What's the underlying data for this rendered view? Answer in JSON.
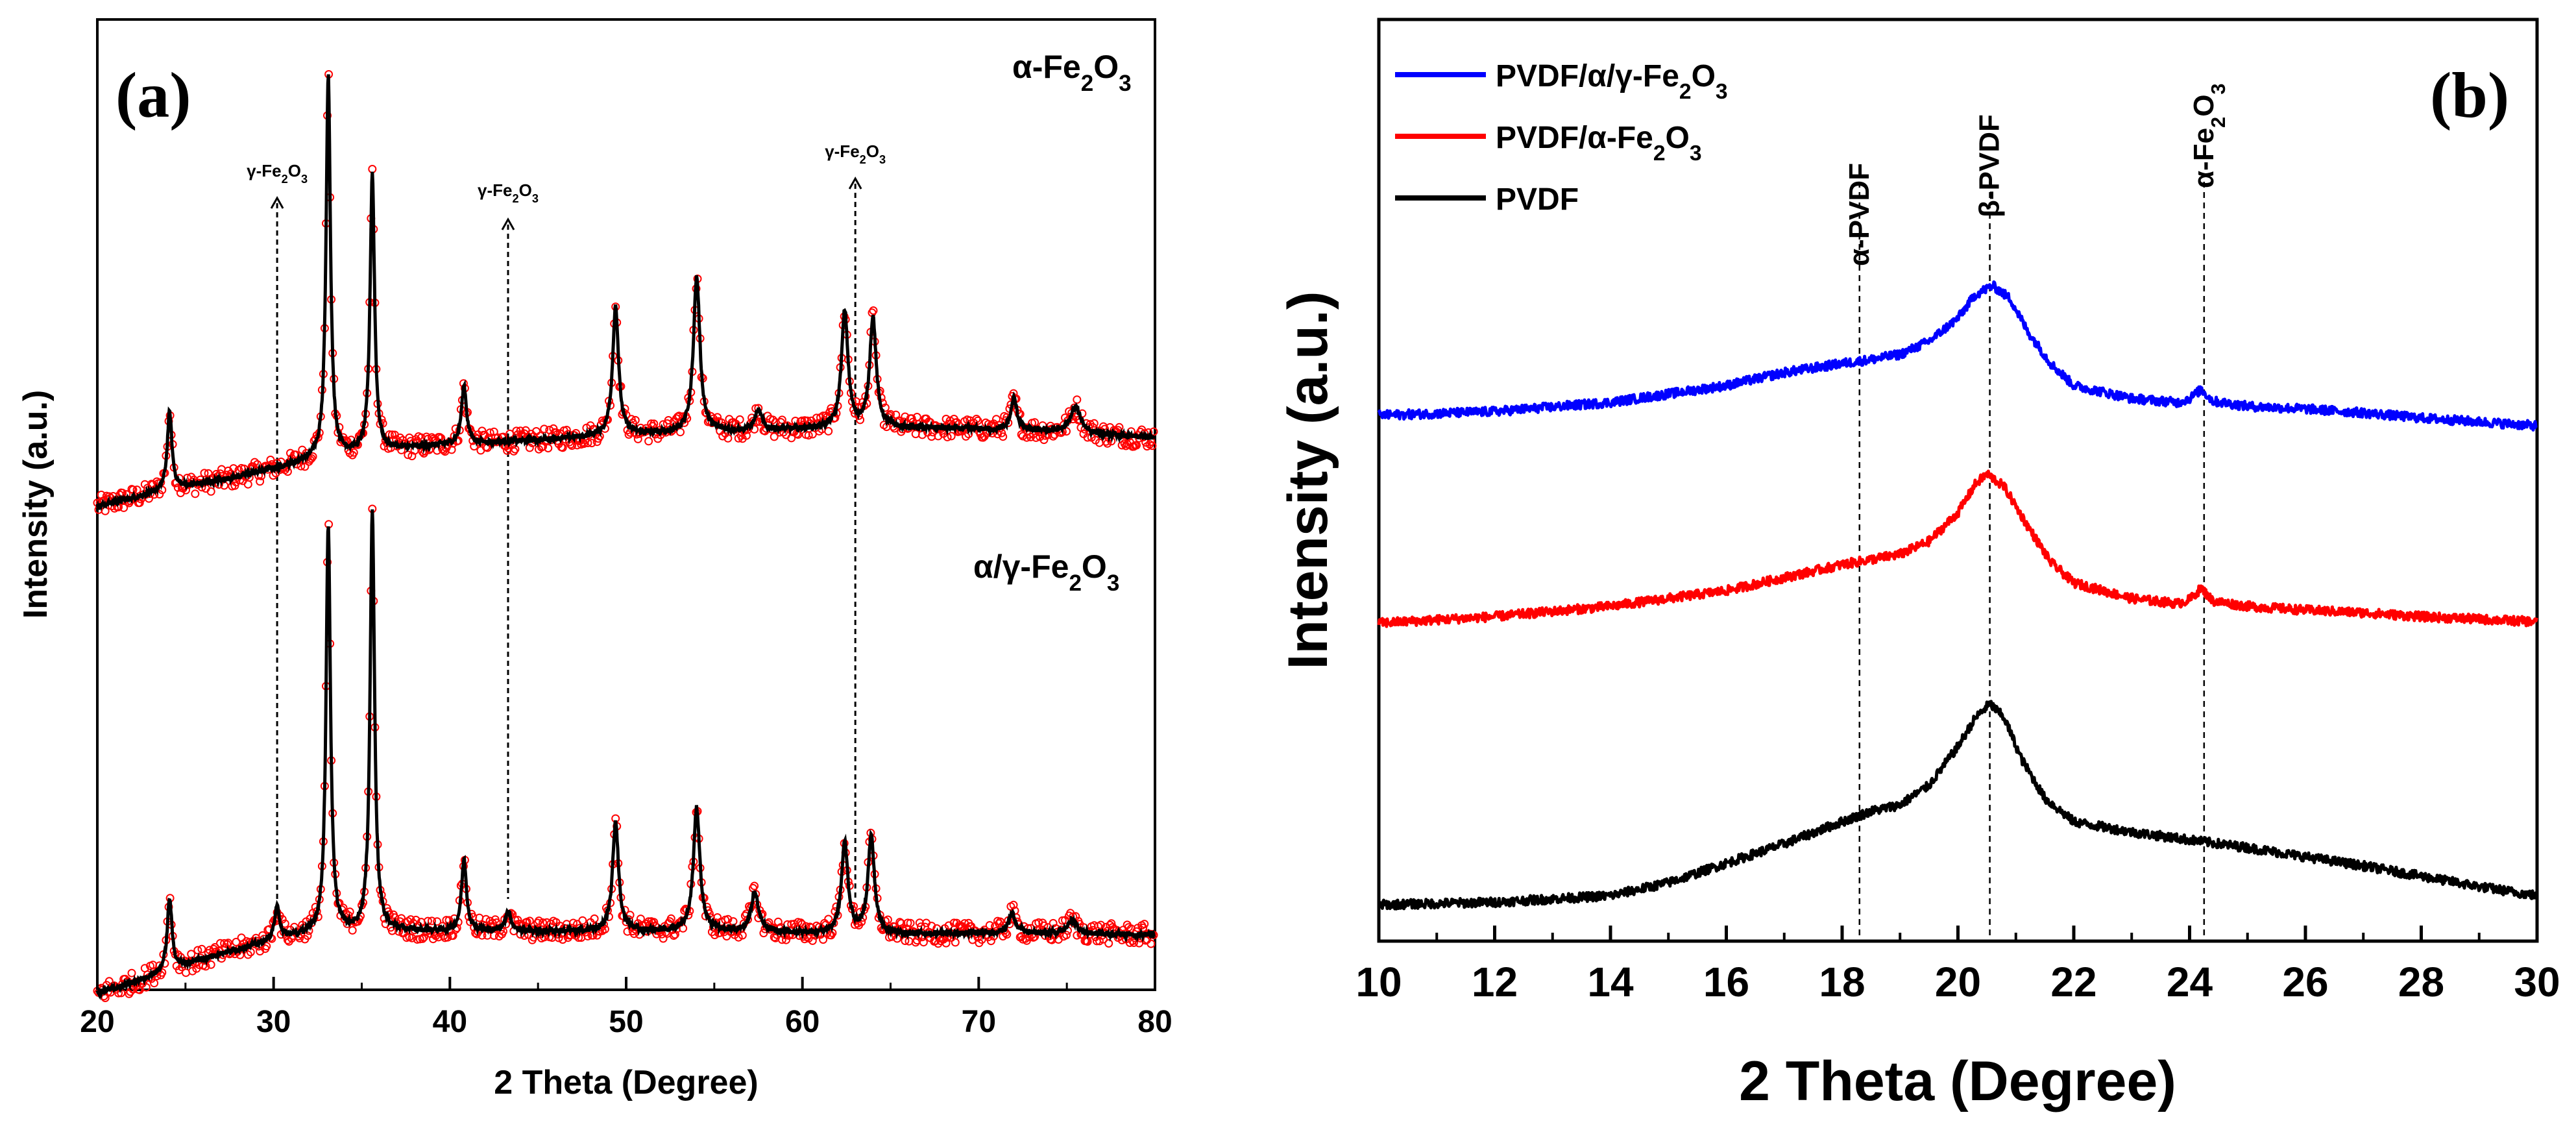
{
  "chart_data": [
    {
      "panel": "(a)",
      "type": "scatter",
      "xlabel": "2 Theta (Degree)",
      "ylabel": "Intensity (a.u.)",
      "xlim": [
        20,
        80
      ],
      "xticks": [
        20,
        30,
        40,
        50,
        60,
        70,
        80
      ],
      "y_ticks_shown": false,
      "marker_color": "#ff0000",
      "fit_color": "#000000",
      "series": [
        {
          "name": "α-Fe2O3",
          "label": {
            "prefix": "α-Fe",
            "sub1": "2",
            "mid": "O",
            "sub2": "3"
          },
          "baseline": [
            [
              20,
              1.2
            ],
            [
              24,
              1.45
            ],
            [
              28,
              1.65
            ],
            [
              32,
              1.9
            ],
            [
              36,
              2.05
            ],
            [
              40,
              2.15
            ],
            [
              44,
              2.2
            ],
            [
              50,
              2.3
            ],
            [
              56,
              2.35
            ],
            [
              62,
              2.4
            ],
            [
              68,
              2.4
            ],
            [
              74,
              2.35
            ],
            [
              80,
              2.25
            ]
          ],
          "peaks": [
            {
              "x": 24.1,
              "h": 1.2,
              "w": 0.16
            },
            {
              "x": 33.1,
              "h": 5.9,
              "w": 0.15
            },
            {
              "x": 35.6,
              "h": 4.3,
              "w": 0.15
            },
            {
              "x": 40.8,
              "h": 0.9,
              "w": 0.17
            },
            {
              "x": 49.4,
              "h": 2.0,
              "w": 0.2
            },
            {
              "x": 54.0,
              "h": 2.4,
              "w": 0.22
            },
            {
              "x": 57.5,
              "h": 0.3,
              "w": 0.25
            },
            {
              "x": 62.4,
              "h": 1.8,
              "w": 0.22
            },
            {
              "x": 64.0,
              "h": 1.7,
              "w": 0.22
            },
            {
              "x": 72.0,
              "h": 0.5,
              "w": 0.2
            },
            {
              "x": 75.5,
              "h": 0.4,
              "w": 0.35
            }
          ]
        },
        {
          "name": "α/γ-Fe2O3",
          "label": {
            "prefix": "α/γ-Fe",
            "sub1": "2",
            "mid": "O",
            "sub2": "3"
          },
          "baseline": [
            [
              20,
              0.0
            ],
            [
              22,
              0.15
            ],
            [
              24,
              0.35
            ],
            [
              27,
              0.6
            ],
            [
              30,
              0.8
            ],
            [
              32,
              0.9
            ],
            [
              36,
              0.95
            ],
            [
              40,
              0.95
            ],
            [
              45,
              0.95
            ],
            [
              50,
              0.95
            ],
            [
              55,
              0.95
            ],
            [
              60,
              0.92
            ],
            [
              65,
              0.9
            ],
            [
              70,
              0.92
            ],
            [
              75,
              0.92
            ],
            [
              80,
              0.9
            ]
          ],
          "peaks": [
            {
              "x": 24.1,
              "h": 1.1,
              "w": 0.16
            },
            {
              "x": 30.2,
              "h": 0.5,
              "w": 0.18
            },
            {
              "x": 33.1,
              "h": 6.3,
              "w": 0.15
            },
            {
              "x": 35.6,
              "h": 6.5,
              "w": 0.15
            },
            {
              "x": 40.8,
              "h": 1.1,
              "w": 0.17
            },
            {
              "x": 43.3,
              "h": 0.3,
              "w": 0.2
            },
            {
              "x": 49.4,
              "h": 1.7,
              "w": 0.2
            },
            {
              "x": 54.0,
              "h": 1.9,
              "w": 0.22
            },
            {
              "x": 57.3,
              "h": 0.6,
              "w": 0.25
            },
            {
              "x": 62.4,
              "h": 1.4,
              "w": 0.22
            },
            {
              "x": 63.9,
              "h": 1.5,
              "w": 0.22
            },
            {
              "x": 71.9,
              "h": 0.3,
              "w": 0.25
            },
            {
              "x": 75.3,
              "h": 0.2,
              "w": 0.3
            }
          ]
        }
      ],
      "annotations": [
        {
          "text": "γ-Fe2O3",
          "label": {
            "prefix": "γ-Fe",
            "sub1": "2",
            "mid": "O",
            "sub2": "3"
          },
          "x": 30.2
        },
        {
          "text": "γ-Fe2O3",
          "label": {
            "prefix": "γ-Fe",
            "sub1": "2",
            "mid": "O",
            "sub2": "3"
          },
          "x": 43.3
        },
        {
          "text": "γ-Fe2O3",
          "label": {
            "prefix": "γ-Fe",
            "sub1": "2",
            "mid": "O",
            "sub2": "3"
          },
          "x": 63.0
        }
      ]
    },
    {
      "panel": "(b)",
      "type": "line",
      "xlabel": "2 Theta (Degree)",
      "ylabel": "Intensity (a.u.)",
      "xlim": [
        10,
        30
      ],
      "xticks": [
        10,
        12,
        14,
        16,
        18,
        20,
        22,
        24,
        26,
        28,
        30
      ],
      "y_ticks_shown": false,
      "legend_position": "top-left",
      "series": [
        {
          "name": "PVDF/α/γ-Fe2O3",
          "label": {
            "prefix": "PVDF/α/γ-Fe",
            "sub1": "2",
            "mid": "O",
            "sub2": "3"
          },
          "color": "#0000ff",
          "curve": [
            [
              10,
              2.95
            ],
            [
              12,
              2.98
            ],
            [
              14,
              3.05
            ],
            [
              16,
              3.18
            ],
            [
              17,
              3.28
            ],
            [
              18,
              3.35
            ],
            [
              18.5,
              3.38
            ],
            [
              19,
              3.42
            ],
            [
              19.5,
              3.52
            ],
            [
              20,
              3.7
            ],
            [
              20.3,
              3.88
            ],
            [
              20.6,
              3.95
            ],
            [
              20.9,
              3.85
            ],
            [
              21.2,
              3.6
            ],
            [
              21.6,
              3.35
            ],
            [
              22,
              3.18
            ],
            [
              23,
              3.08
            ],
            [
              23.8,
              3.05
            ],
            [
              24,
              3.08
            ],
            [
              24.2,
              3.15
            ],
            [
              24.4,
              3.06
            ],
            [
              25,
              3.02
            ],
            [
              26,
              3.0
            ],
            [
              27,
              2.97
            ],
            [
              28,
              2.93
            ],
            [
              29,
              2.9
            ],
            [
              30,
              2.87
            ]
          ]
        },
        {
          "name": "PVDF/α-Fe2O3",
          "label": {
            "prefix": "PVDF/α-Fe",
            "sub1": "2",
            "mid": "O",
            "sub2": "3"
          },
          "color": "#ff0000",
          "curve": [
            [
              10,
              1.35
            ],
            [
              12,
              1.4
            ],
            [
              14,
              1.48
            ],
            [
              16,
              1.6
            ],
            [
              17,
              1.7
            ],
            [
              18,
              1.8
            ],
            [
              18.5,
              1.84
            ],
            [
              19,
              1.88
            ],
            [
              19.5,
              1.98
            ],
            [
              20,
              2.2
            ],
            [
              20.3,
              2.42
            ],
            [
              20.5,
              2.5
            ],
            [
              20.8,
              2.4
            ],
            [
              21.2,
              2.1
            ],
            [
              21.6,
              1.82
            ],
            [
              22,
              1.66
            ],
            [
              23,
              1.54
            ],
            [
              23.8,
              1.5
            ],
            [
              24,
              1.53
            ],
            [
              24.2,
              1.62
            ],
            [
              24.4,
              1.52
            ],
            [
              25,
              1.48
            ],
            [
              26,
              1.45
            ],
            [
              27,
              1.43
            ],
            [
              28,
              1.4
            ],
            [
              29,
              1.38
            ],
            [
              30,
              1.36
            ]
          ]
        },
        {
          "name": "PVDF",
          "label": {
            "prefix": "PVDF",
            "sub1": "",
            "mid": "",
            "sub2": ""
          },
          "color": "#000000",
          "curve": [
            [
              10,
              -0.82
            ],
            [
              12,
              -0.8
            ],
            [
              14,
              -0.75
            ],
            [
              15,
              -0.65
            ],
            [
              16,
              -0.5
            ],
            [
              17,
              -0.35
            ],
            [
              18,
              -0.18
            ],
            [
              18.5,
              -0.1
            ],
            [
              19,
              -0.05
            ],
            [
              19.5,
              0.1
            ],
            [
              20,
              0.4
            ],
            [
              20.3,
              0.62
            ],
            [
              20.55,
              0.73
            ],
            [
              20.8,
              0.62
            ],
            [
              21.1,
              0.3
            ],
            [
              21.5,
              0.0
            ],
            [
              22,
              -0.18
            ],
            [
              23,
              -0.26
            ],
            [
              24,
              -0.32
            ],
            [
              25,
              -0.38
            ],
            [
              26,
              -0.45
            ],
            [
              27,
              -0.52
            ],
            [
              28,
              -0.6
            ],
            [
              29,
              -0.68
            ],
            [
              30,
              -0.75
            ]
          ]
        }
      ],
      "reference_lines": [
        {
          "x": 18.3,
          "label": "α-PVDF"
        },
        {
          "x": 20.55,
          "label": "β-PVDF"
        },
        {
          "x": 24.25,
          "label": {
            "prefix": "α-Fe",
            "sub1": "2",
            "mid": "O",
            "sub2": "3"
          }
        }
      ]
    }
  ]
}
